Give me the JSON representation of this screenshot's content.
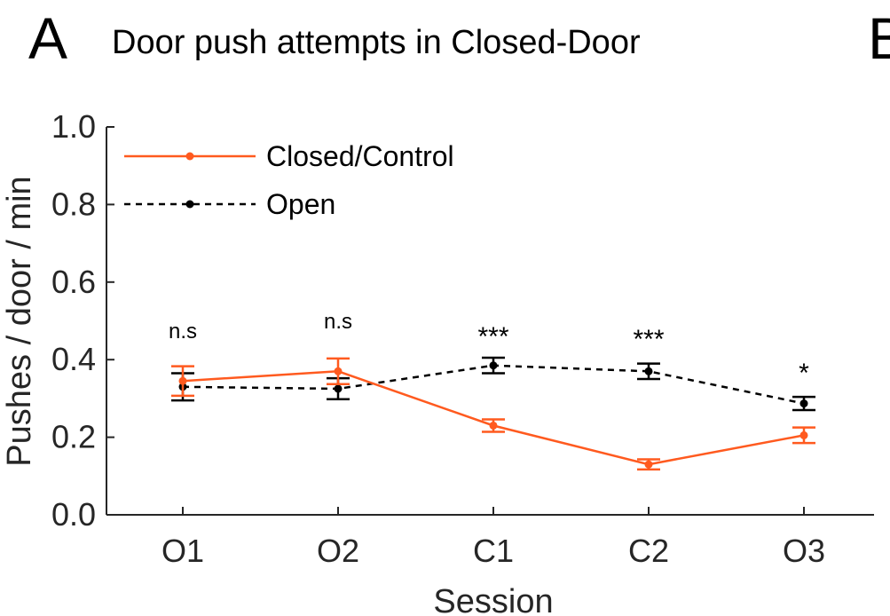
{
  "panel_letter": "A",
  "next_panel_letter": "B",
  "chart_data": {
    "type": "line",
    "title": "Door push attempts in Closed-Door",
    "xlabel": "Session",
    "ylabel": "Pushes / door / min",
    "categories": [
      "O1",
      "O2",
      "C1",
      "C2",
      "O3"
    ],
    "ylim": [
      0.0,
      1.0
    ],
    "yticks": [
      "0.0",
      "0.2",
      "0.4",
      "0.6",
      "0.8",
      "1.0"
    ],
    "grid": false,
    "legend_position": "top-left",
    "series": [
      {
        "name": "Closed/Control",
        "color": "#ff5a1f",
        "line_style": "solid",
        "values": [
          0.345,
          0.37,
          0.23,
          0.13,
          0.205
        ],
        "error": [
          0.038,
          0.033,
          0.016,
          0.013,
          0.02
        ]
      },
      {
        "name": "Open",
        "color": "#000000",
        "line_style": "dashed",
        "values": [
          0.33,
          0.325,
          0.385,
          0.37,
          0.287
        ],
        "error": [
          0.035,
          0.027,
          0.02,
          0.02,
          0.017
        ]
      }
    ],
    "annotations": [
      "n.s",
      "n.s",
      "***",
      "***",
      "*"
    ]
  }
}
